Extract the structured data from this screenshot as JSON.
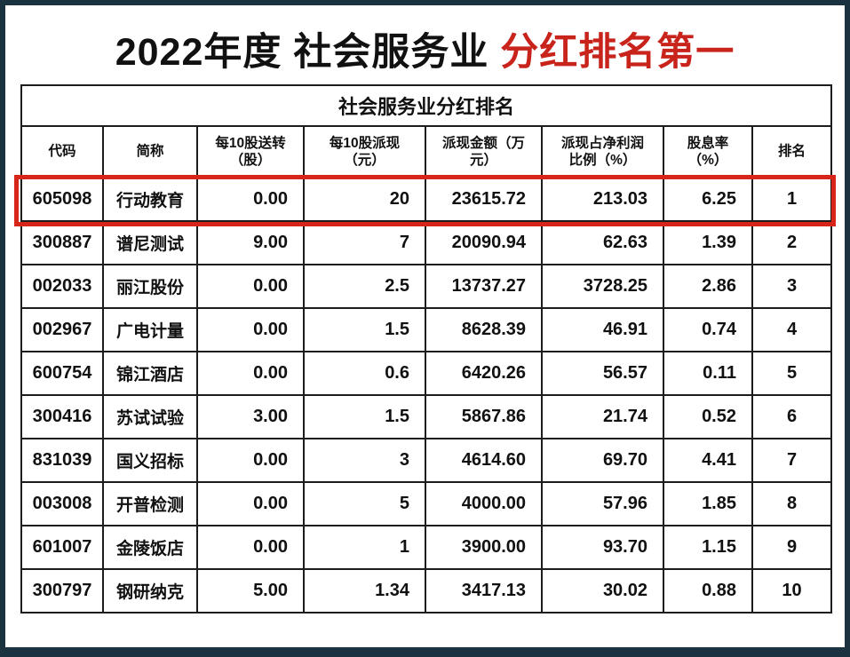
{
  "page": {
    "title_black": "2022年度 社会服务业 ",
    "title_red": "分红排名第一",
    "accent_red": "#c8241c",
    "frame_navy": "#1b3340",
    "highlight_border_red": "#d8251a"
  },
  "chart_data": {
    "type": "table",
    "title": "社会服务业分红排名",
    "columns": [
      "代码",
      "简称",
      "每10股送转\n（股）",
      "每10股派现\n（元）",
      "派现金额（万\n元）",
      "派现占净利润\n比例（%）",
      "股息率\n（%）",
      "排名"
    ],
    "rows": [
      [
        "605098",
        "行动教育",
        "0.00",
        "20",
        "23615.72",
        "213.03",
        "6.25",
        "1"
      ],
      [
        "300887",
        "谱尼测试",
        "9.00",
        "7",
        "20090.94",
        "62.63",
        "1.39",
        "2"
      ],
      [
        "002033",
        "丽江股份",
        "0.00",
        "2.5",
        "13737.27",
        "3728.25",
        "2.86",
        "3"
      ],
      [
        "002967",
        "广电计量",
        "0.00",
        "1.5",
        "8628.39",
        "46.91",
        "0.74",
        "4"
      ],
      [
        "600754",
        "锦江酒店",
        "0.00",
        "0.6",
        "6420.26",
        "56.57",
        "0.11",
        "5"
      ],
      [
        "300416",
        "苏试试验",
        "3.00",
        "1.5",
        "5867.86",
        "21.74",
        "0.52",
        "6"
      ],
      [
        "831039",
        "国义招标",
        "0.00",
        "3",
        "4614.60",
        "69.70",
        "4.41",
        "7"
      ],
      [
        "003008",
        "开普检测",
        "0.00",
        "5",
        "4000.00",
        "57.96",
        "1.85",
        "8"
      ],
      [
        "601007",
        "金陵饭店",
        "0.00",
        "1",
        "3900.00",
        "93.70",
        "1.15",
        "9"
      ],
      [
        "300797",
        "钢研纳克",
        "5.00",
        "1.34",
        "3417.13",
        "30.02",
        "0.88",
        "10"
      ]
    ],
    "highlighted_row_index": 0,
    "layout_hints": "ranking table; first data row outlined with thick red rectangle; numeric columns right-aligned; grid on"
  }
}
